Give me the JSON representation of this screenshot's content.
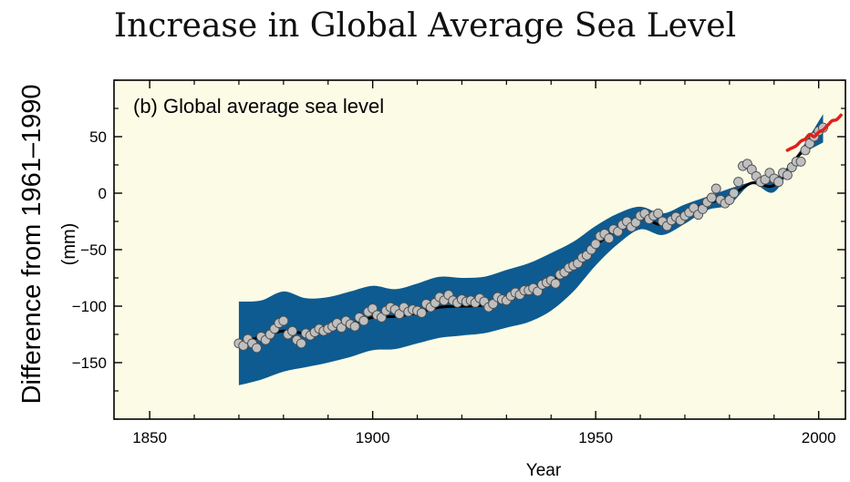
{
  "title": "Increase in Global Average Sea Level",
  "chart_data": {
    "type": "line",
    "panel_label": "(b) Global average sea level",
    "xlabel": "Year",
    "ylabel": "Difference from 1961–1990",
    "ylabel_unit": "(mm)",
    "xlim": [
      1842,
      2006
    ],
    "ylim": [
      -200,
      100
    ],
    "xticks": [
      1850,
      1900,
      1950,
      2000
    ],
    "yticks": [
      -150,
      -100,
      -50,
      0,
      50
    ],
    "grid": false,
    "colors": {
      "background": "#fcfbe6",
      "uncertainty_band": "#0d5b91",
      "smoothed_line": "#000000",
      "annual_points": "#bfbfbf",
      "satellite_line": "#e0201b"
    },
    "series": [
      {
        "kind": "uncertainty_band",
        "x": [
          1870,
          1875,
          1880,
          1885,
          1890,
          1895,
          1900,
          1905,
          1910,
          1915,
          1920,
          1925,
          1930,
          1935,
          1940,
          1945,
          1950,
          1955,
          1960,
          1965,
          1970,
          1975,
          1980,
          1985,
          1990,
          1995,
          2001
        ],
        "upper": [
          -96,
          -95,
          -87,
          -93,
          -92,
          -87,
          -82,
          -85,
          -80,
          -74,
          -75,
          -74,
          -68,
          -62,
          -53,
          -43,
          -29,
          -18,
          -12,
          -18,
          -10,
          -3,
          4,
          10,
          13,
          33,
          70
        ],
        "lower": [
          -170,
          -165,
          -158,
          -154,
          -150,
          -145,
          -139,
          -138,
          -133,
          -128,
          -126,
          -124,
          -119,
          -114,
          -104,
          -87,
          -64,
          -45,
          -32,
          -37,
          -27,
          -15,
          -10,
          8,
          1,
          30,
          45
        ]
      },
      {
        "kind": "smoothed_line",
        "x": [
          1870,
          1875,
          1880,
          1885,
          1890,
          1895,
          1900,
          1905,
          1910,
          1915,
          1920,
          1925,
          1930,
          1935,
          1940,
          1945,
          1950,
          1955,
          1960,
          1965,
          1970,
          1975,
          1980,
          1985,
          1990,
          1995,
          2001
        ],
        "y": [
          -133,
          -127,
          -122,
          -124,
          -121,
          -116,
          -110,
          -109,
          -106,
          -101,
          -100,
          -99,
          -93,
          -88,
          -78,
          -65,
          -46,
          -32,
          -22,
          -28,
          -18,
          -9,
          -3,
          9,
          7,
          31,
          57
        ]
      },
      {
        "kind": "annual_points",
        "x": [
          1870,
          1871,
          1872,
          1873,
          1874,
          1875,
          1876,
          1877,
          1878,
          1879,
          1880,
          1881,
          1882,
          1883,
          1884,
          1885,
          1886,
          1887,
          1888,
          1889,
          1890,
          1891,
          1892,
          1893,
          1894,
          1895,
          1896,
          1897,
          1898,
          1899,
          1900,
          1901,
          1902,
          1903,
          1904,
          1905,
          1906,
          1907,
          1908,
          1909,
          1910,
          1911,
          1912,
          1913,
          1914,
          1915,
          1916,
          1917,
          1918,
          1919,
          1920,
          1921,
          1922,
          1923,
          1924,
          1925,
          1926,
          1927,
          1928,
          1929,
          1930,
          1931,
          1932,
          1933,
          1934,
          1935,
          1936,
          1937,
          1938,
          1939,
          1940,
          1941,
          1942,
          1943,
          1944,
          1945,
          1946,
          1947,
          1948,
          1949,
          1950,
          1951,
          1952,
          1953,
          1954,
          1955,
          1956,
          1957,
          1958,
          1959,
          1960,
          1961,
          1962,
          1963,
          1964,
          1965,
          1966,
          1967,
          1968,
          1969,
          1970,
          1971,
          1972,
          1973,
          1974,
          1975,
          1976,
          1977,
          1978,
          1979,
          1980,
          1981,
          1982,
          1983,
          1984,
          1985,
          1986,
          1987,
          1988,
          1989,
          1990,
          1991,
          1992,
          1993,
          1994,
          1995,
          1996,
          1997,
          1998,
          1999,
          2000,
          2001
        ],
        "y": [
          -133,
          -135,
          -129,
          -133,
          -137,
          -127,
          -130,
          -125,
          -120,
          -115,
          -113,
          -125,
          -122,
          -130,
          -133,
          -124,
          -126,
          -123,
          -120,
          -122,
          -120,
          -118,
          -115,
          -119,
          -113,
          -116,
          -118,
          -110,
          -113,
          -105,
          -102,
          -108,
          -110,
          -104,
          -101,
          -103,
          -107,
          -101,
          -105,
          -103,
          -104,
          -106,
          -98,
          -101,
          -97,
          -92,
          -95,
          -90,
          -95,
          -97,
          -94,
          -96,
          -95,
          -97,
          -93,
          -96,
          -101,
          -98,
          -92,
          -94,
          -95,
          -91,
          -88,
          -90,
          -86,
          -86,
          -84,
          -87,
          -81,
          -79,
          -77,
          -80,
          -72,
          -70,
          -66,
          -64,
          -62,
          -57,
          -55,
          -50,
          -45,
          -38,
          -36,
          -40,
          -32,
          -34,
          -28,
          -25,
          -30,
          -26,
          -20,
          -18,
          -23,
          -20,
          -18,
          -25,
          -29,
          -24,
          -21,
          -24,
          -20,
          -17,
          -13,
          -19,
          -14,
          -8,
          -4,
          4,
          -6,
          -9,
          -6,
          0,
          10,
          24,
          26,
          21,
          15,
          10,
          12,
          18,
          13,
          10,
          18,
          16,
          23,
          28,
          28,
          38,
          44,
          50,
          55,
          58
        ]
      },
      {
        "kind": "satellite_line",
        "x": [
          1993,
          1994,
          1995,
          1996,
          1997,
          1998,
          1999,
          2000,
          2001,
          2002,
          2003,
          2004,
          2005
        ],
        "y": [
          38,
          40,
          42,
          46,
          48,
          52,
          50,
          54,
          56,
          60,
          64,
          65,
          69
        ]
      }
    ]
  }
}
